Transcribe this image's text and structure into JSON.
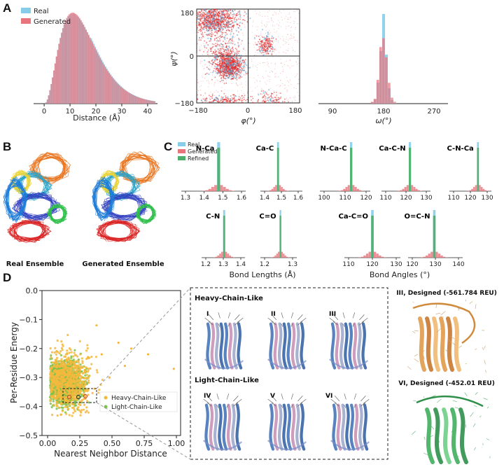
{
  "panels": {
    "A": {
      "letter": "A"
    },
    "B": {
      "letter": "B"
    },
    "C": {
      "letter": "C"
    },
    "D": {
      "letter": "D"
    }
  },
  "panelA": {
    "hist": {
      "legend": [
        "Real",
        "Generated"
      ],
      "xlabel": "Distance (Å)",
      "xticks": [
        "0",
        "10",
        "20",
        "30",
        "40"
      ]
    },
    "rama": {
      "xlabel": "φ(°)",
      "ylabel": "ψ(°)",
      "xticks": [
        "−180",
        "0",
        "180"
      ],
      "yticks": [
        "180",
        "0",
        "−180"
      ]
    },
    "omega": {
      "xlabel": "ω(°)",
      "xticks": [
        "90",
        "180",
        "270"
      ]
    }
  },
  "panelB": {
    "labels": [
      "Real Ensemble",
      "Generated Ensemble"
    ]
  },
  "panelC": {
    "legend": [
      "Real",
      "Generated",
      "Refined"
    ],
    "top": [
      {
        "title": "N-Ca",
        "ticks": [
          "1.3",
          "1.4",
          "1.5",
          "1.6"
        ]
      },
      {
        "title": "Ca-C",
        "ticks": [
          "1.4",
          "1.5",
          "1.6"
        ]
      },
      {
        "title": "N-Ca-C",
        "ticks": [
          "100",
          "110",
          "120"
        ]
      },
      {
        "title": "Ca-C-N",
        "ticks": [
          "110",
          "120",
          "130"
        ]
      },
      {
        "title": "C-N-Ca",
        "ticks": [
          "110",
          "120",
          "130"
        ]
      }
    ],
    "bottom": [
      {
        "title": "C-N",
        "ticks": [
          "1.2",
          "1.3",
          "1.4"
        ]
      },
      {
        "title": "C=O",
        "ticks": [
          "1.2",
          "1.3"
        ]
      },
      {
        "title": "Ca-C=O",
        "ticks": [
          "110",
          "120",
          "130"
        ]
      },
      {
        "title": "O=C-N",
        "ticks": [
          "120",
          "130",
          "140"
        ]
      }
    ],
    "xlabel_lengths": "Bond Lengths (Å)",
    "xlabel_angles": "Bond Angles (°)"
  },
  "panelD": {
    "ylabel": "Per-Residue Energy",
    "xlabel": "Nearest Neighbor Distance",
    "xticks": [
      "0.00",
      "0.25",
      "0.50",
      "0.75",
      "1.00"
    ],
    "yticks": [
      "0.0",
      "−0.1",
      "−0.2",
      "−0.3",
      "−0.4",
      "−0.5"
    ],
    "legend": [
      "Heavy-Chain-Like",
      "Light-Chain-Like"
    ],
    "heavy_title": "Heavy-Chain-Like",
    "light_title": "Light-Chain-Like",
    "roman_top": [
      "I",
      "II",
      "III"
    ],
    "roman_bottom": [
      "IV",
      "V",
      "VI"
    ],
    "designed_top": "III, Designed (-561.784 REU)",
    "designed_bottom": "VI, Designed (-452.01 REU)"
  },
  "colors": {
    "real": "#87cdea",
    "generated": "#e8747c",
    "refined": "#4caf6a",
    "heavy": "#f5b83d",
    "light": "#7cc24a"
  }
}
